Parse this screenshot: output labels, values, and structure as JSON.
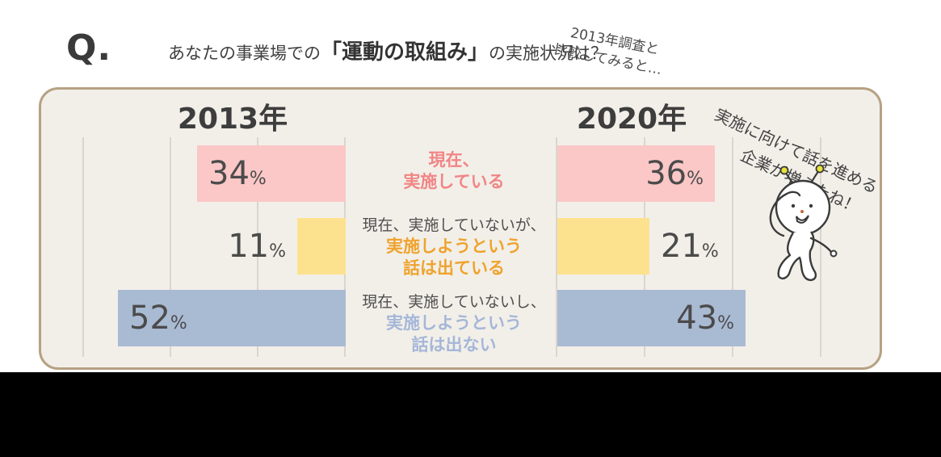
{
  "question": {
    "mark": "Q.",
    "before": "あなたの事業場での",
    "highlight": "「運動の取組み」",
    "after": "の実施状況は？"
  },
  "note": {
    "line1": "2013年調査と",
    "line2": "比較してみると…"
  },
  "years": {
    "left": "2013年",
    "right": "2020年"
  },
  "percent_sign": "%",
  "labels": {
    "cat1": {
      "line1": "現在、",
      "line2": "実施している"
    },
    "cat2": {
      "plain": "現在、実施していないが、",
      "line1": "実施しようという",
      "line2": "話は出ている"
    },
    "cat3": {
      "plain": "現在、実施していないし、",
      "line1": "実施しようという",
      "line2": "話は出ない"
    }
  },
  "mascot": {
    "speech_line1": "実施に向けて話を進める",
    "speech_line2": "企業が増えたね！"
  },
  "colors": {
    "bar_pink": "#fbc7c7",
    "bar_yellow": "#fce28e",
    "bar_blue": "#a9bad3",
    "label_pink": "#f18585",
    "label_orange": "#efa32d",
    "label_blue": "#a5b7d8",
    "card_bg": "#f2efe9",
    "card_border": "#b7a183",
    "gridline": "#dad6ce",
    "value_text": "#4b4b4b",
    "bottom_band": "#000000"
  },
  "chart_data": {
    "type": "bar",
    "orientation": "horizontal",
    "unit": "%",
    "title": "あなたの事業場での「運動の取組み」の実施状況は？",
    "categories": [
      "現在、実施している",
      "現在、実施していないが、実施しようという話は出ている",
      "現在、実施していないし、実施しようという話は出ない"
    ],
    "series": [
      {
        "name": "2013年",
        "values": [
          34,
          11,
          52
        ]
      },
      {
        "name": "2020年",
        "values": [
          36,
          21,
          43
        ]
      }
    ],
    "xlim": [
      0,
      60
    ],
    "gridline_interval_pct": 20,
    "legend": "none",
    "bars_2013_anchor": "right",
    "bars_2020_anchor": "left",
    "annotations": [
      "2013年調査と比較してみると…",
      "実施に向けて話を進める企業が増えたね！"
    ]
  }
}
